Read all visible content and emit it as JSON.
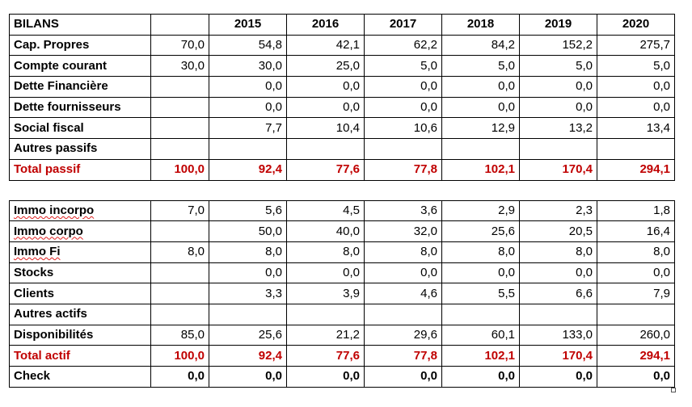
{
  "header": {
    "title": "BILANS",
    "years": [
      "2015",
      "2016",
      "2017",
      "2018",
      "2019",
      "2020"
    ]
  },
  "passif": [
    {
      "label": "Cap. Propres",
      "values": [
        "70,0",
        "54,8",
        "42,1",
        "62,2",
        "84,2",
        "152,2",
        "275,7"
      ]
    },
    {
      "label": "Compte courant",
      "values": [
        "30,0",
        "30,0",
        "25,0",
        "5,0",
        "5,0",
        "5,0",
        "5,0"
      ]
    },
    {
      "label": "Dette Financière",
      "values": [
        "",
        "0,0",
        "0,0",
        "0,0",
        "0,0",
        "0,0",
        "0,0"
      ]
    },
    {
      "label": "Dette fournisseurs",
      "values": [
        "",
        "0,0",
        "0,0",
        "0,0",
        "0,0",
        "0,0",
        "0,0"
      ]
    },
    {
      "label": "Social fiscal",
      "values": [
        "",
        "7,7",
        "10,4",
        "10,6",
        "12,9",
        "13,2",
        "13,4"
      ]
    },
    {
      "label": "Autres passifs",
      "values": [
        "",
        "",
        "",
        "",
        "",
        "",
        ""
      ]
    }
  ],
  "total_passif": {
    "label": "Total passif",
    "values": [
      "100,0",
      "92,4",
      "77,6",
      "77,8",
      "102,1",
      "170,4",
      "294,1"
    ]
  },
  "actif": [
    {
      "label": "Immo incorpo",
      "values": [
        "7,0",
        "5,6",
        "4,5",
        "3,6",
        "2,9",
        "2,3",
        "1,8"
      ]
    },
    {
      "label": "Immo corpo",
      "values": [
        "",
        "50,0",
        "40,0",
        "32,0",
        "25,6",
        "20,5",
        "16,4"
      ]
    },
    {
      "label": "Immo Fi",
      "values": [
        "8,0",
        "8,0",
        "8,0",
        "8,0",
        "8,0",
        "8,0",
        "8,0"
      ]
    },
    {
      "label": "Stocks",
      "values": [
        "",
        "0,0",
        "0,0",
        "0,0",
        "0,0",
        "0,0",
        "0,0"
      ]
    },
    {
      "label": "Clients",
      "values": [
        "",
        "3,3",
        "3,9",
        "4,6",
        "5,5",
        "6,6",
        "7,9"
      ]
    },
    {
      "label": "Autres actifs",
      "values": [
        "",
        "",
        "",
        "",
        "",
        "",
        ""
      ]
    },
    {
      "label": "Disponibilités",
      "values": [
        "85,0",
        "25,6",
        "21,2",
        "29,6",
        "60,1",
        "133,0",
        "260,0"
      ]
    }
  ],
  "total_actif": {
    "label": "Total actif",
    "values": [
      "100,0",
      "92,4",
      "77,6",
      "77,8",
      "102,1",
      "170,4",
      "294,1"
    ]
  },
  "check": {
    "label": "Check",
    "values": [
      "0,0",
      "0,0",
      "0,0",
      "0,0",
      "0,0",
      "0,0",
      "0,0"
    ]
  },
  "colors": {
    "total_text": "#c00000",
    "grid": "#000000",
    "spellcheck": "#e02020"
  }
}
